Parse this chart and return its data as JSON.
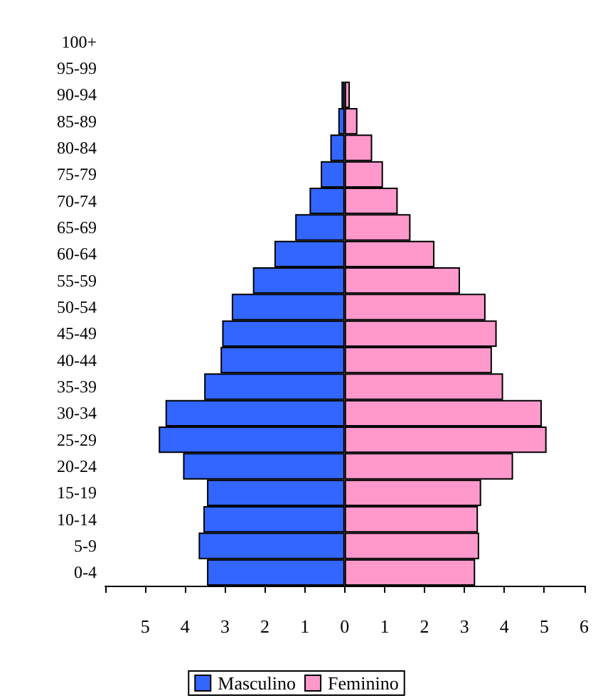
{
  "chart_data": {
    "type": "bar",
    "orientation": "horizontal",
    "stacked": true,
    "categories": [
      "100+",
      "95-99",
      "90-94",
      "85-89",
      "80-84",
      "75-79",
      "70-74",
      "65-69",
      "60-64",
      "55-59",
      "50-54",
      "45-49",
      "40-44",
      "35-39",
      "30-34",
      "25-29",
      "20-24",
      "15-19",
      "10-14",
      "5-9",
      "0-4"
    ],
    "series": [
      {
        "name": "Masculino",
        "color": "#3366ff",
        "values": [
          null,
          null,
          -0.08,
          -0.16,
          -0.36,
          -0.6,
          -0.88,
          -1.24,
          -1.76,
          -2.3,
          -2.83,
          -3.07,
          -3.11,
          -3.52,
          -4.49,
          -4.66,
          -4.05,
          -3.45,
          -3.54,
          -3.66,
          -3.45
        ]
      },
      {
        "name": "Feminino",
        "color": "#ff99cc",
        "values": [
          null,
          null,
          0.13,
          0.32,
          0.69,
          0.96,
          1.33,
          1.65,
          2.25,
          2.89,
          3.53,
          3.81,
          3.69,
          3.97,
          4.94,
          5.06,
          4.22,
          3.42,
          3.34,
          3.37,
          3.27
        ]
      }
    ],
    "xlim": [
      -6,
      6
    ],
    "xticks": [
      {
        "value": -6,
        "label": null
      },
      {
        "value": -5,
        "label": "5"
      },
      {
        "value": -4,
        "label": "4"
      },
      {
        "value": -3,
        "label": "3"
      },
      {
        "value": -2,
        "label": "2"
      },
      {
        "value": -1,
        "label": "1"
      },
      0,
      1,
      2,
      3,
      4,
      5,
      6
    ],
    "legend": "bottom",
    "grid": false
  }
}
